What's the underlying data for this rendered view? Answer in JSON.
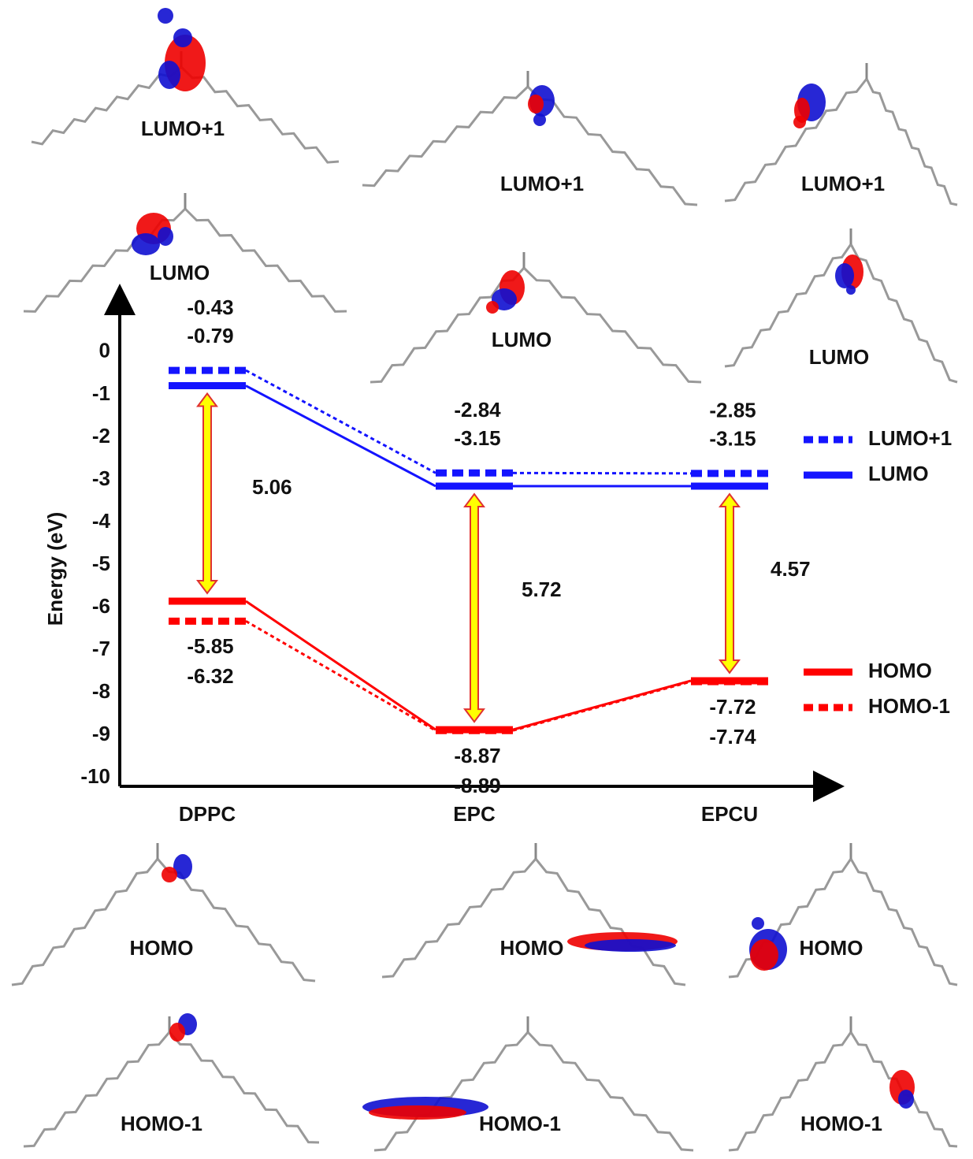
{
  "chart_data": {
    "type": "energy-level",
    "y_label": "Energy (eV)",
    "categories": [
      "DPPC",
      "EPC",
      "EPCU"
    ],
    "ylim": [
      -10.2,
      1.2
    ],
    "yticks": [
      0,
      -1,
      -2,
      -3,
      -4,
      -5,
      -6,
      -7,
      -8,
      -9,
      -10
    ],
    "series": [
      {
        "name": "LUMO+1",
        "color": "#1414ff",
        "dashed": true,
        "values": [
          -0.43,
          -2.84,
          -2.85
        ]
      },
      {
        "name": "LUMO",
        "color": "#1414ff",
        "dashed": false,
        "values": [
          -0.79,
          -3.15,
          -3.15
        ]
      },
      {
        "name": "HOMO",
        "color": "#ff0000",
        "dashed": false,
        "values": [
          -5.85,
          -8.87,
          -7.72
        ]
      },
      {
        "name": "HOMO-1",
        "color": "#ff0000",
        "dashed": true,
        "values": [
          -6.32,
          -8.89,
          -7.74
        ]
      }
    ],
    "gaps": [
      5.06,
      5.72,
      4.57
    ],
    "image_labels": [
      [
        "LUMO+1",
        "LUMO",
        "HOMO",
        "HOMO-1"
      ],
      [
        "LUMO+1",
        "LUMO",
        "HOMO",
        "HOMO-1"
      ],
      [
        "LUMO+1",
        "LUMO",
        "HOMO",
        "HOMO-1"
      ]
    ]
  }
}
